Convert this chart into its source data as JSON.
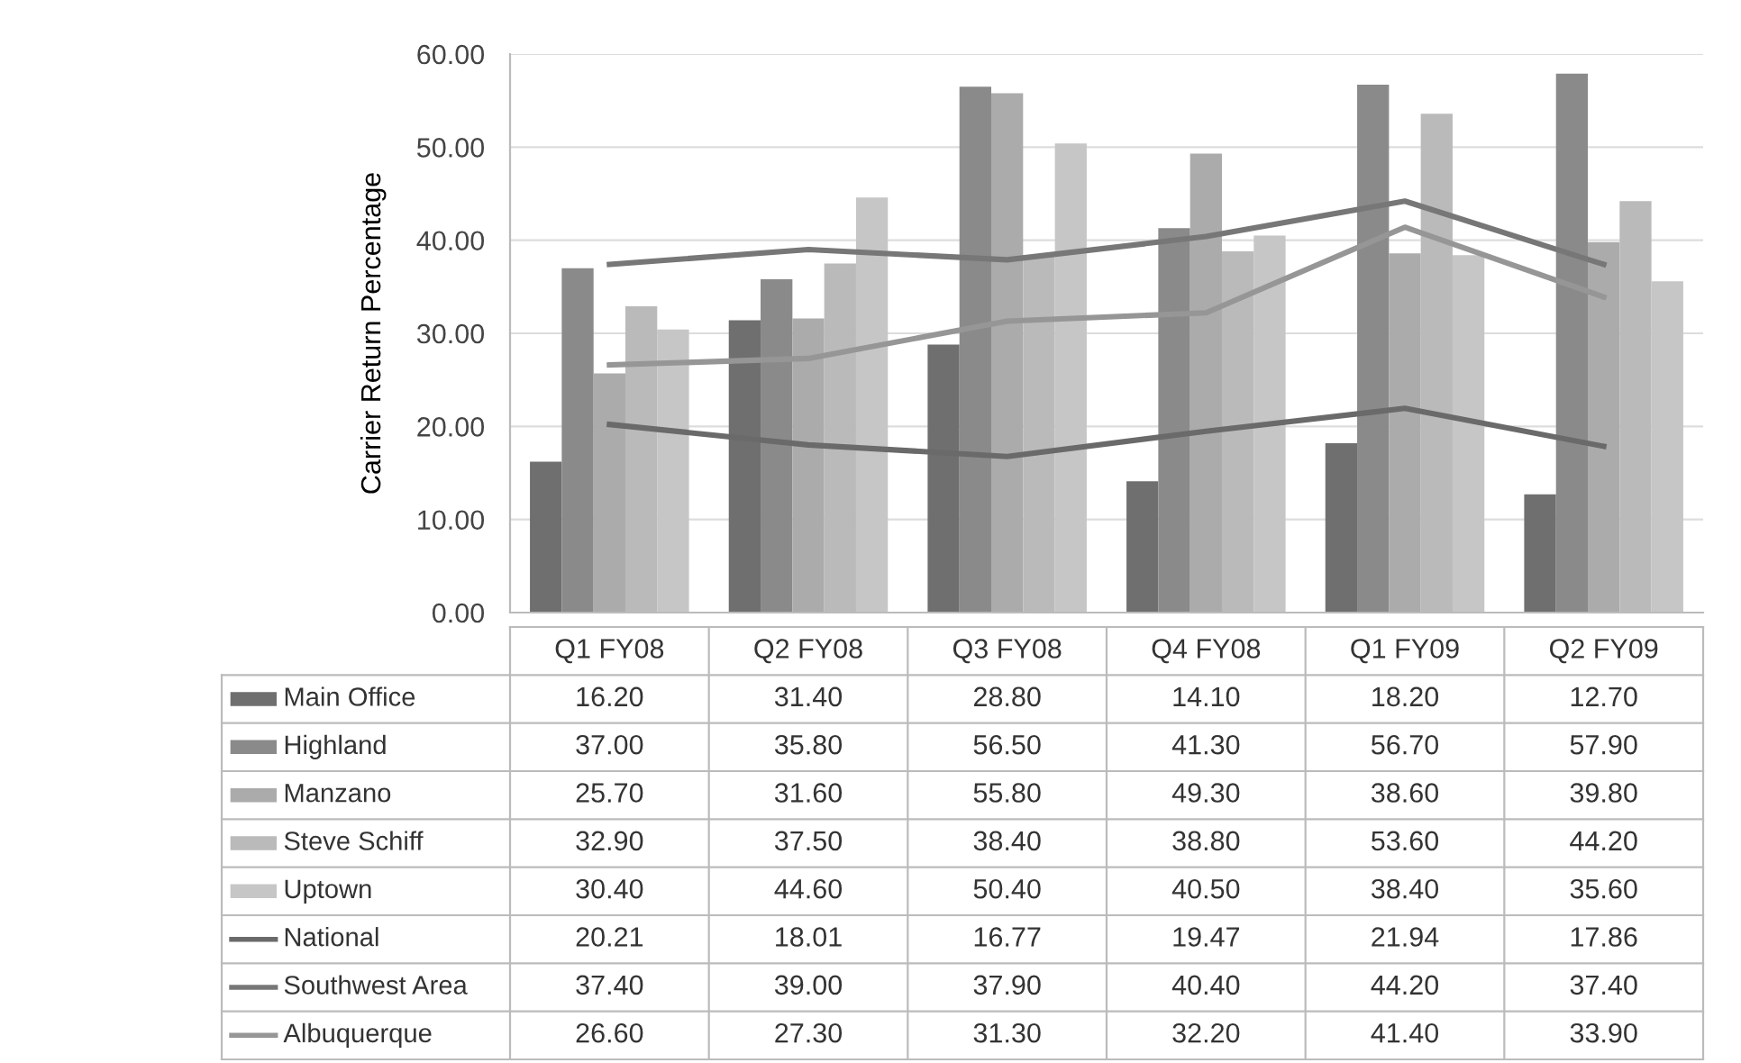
{
  "chart_data": {
    "type": "bar",
    "ylabel": "Carrier Return Percentage",
    "categories": [
      "Q1 FY08",
      "Q2 FY08",
      "Q3 FY08",
      "Q4 FY08",
      "Q1 FY09",
      "Q2 FY09"
    ],
    "series": [
      {
        "name": "Main Office",
        "color": "#6f6f6f",
        "values": [
          16.2,
          31.4,
          28.8,
          14.1,
          18.2,
          12.7
        ],
        "value_labels": [
          "16.20",
          "31.40",
          "28.80",
          "14.10",
          "18.20",
          "12.70"
        ]
      },
      {
        "name": "Highland",
        "color": "#8a8a8a",
        "values": [
          37.0,
          35.8,
          56.5,
          41.3,
          56.7,
          57.9
        ],
        "value_labels": [
          "37.00",
          "35.80",
          "56.50",
          "41.30",
          "56.70",
          "57.90"
        ]
      },
      {
        "name": "Manzano",
        "color": "#ababab",
        "values": [
          25.7,
          31.6,
          55.8,
          49.3,
          38.6,
          39.8
        ],
        "value_labels": [
          "25.70",
          "31.60",
          "55.80",
          "49.30",
          "38.60",
          "39.80"
        ]
      },
      {
        "name": "Steve Schiff",
        "color": "#bababa",
        "values": [
          32.9,
          37.5,
          38.4,
          38.8,
          53.6,
          44.2
        ],
        "value_labels": [
          "32.90",
          "37.50",
          "38.40",
          "38.80",
          "53.60",
          "44.20"
        ]
      },
      {
        "name": "Uptown",
        "color": "#c6c6c6",
        "values": [
          30.4,
          44.6,
          50.4,
          40.5,
          38.4,
          35.6
        ],
        "value_labels": [
          "30.40",
          "44.60",
          "50.40",
          "40.50",
          "38.40",
          "35.60"
        ]
      },
      {
        "name": "National",
        "type": "line",
        "color": "#6a6a6a",
        "values": [
          20.21,
          18.01,
          16.77,
          19.47,
          21.94,
          17.86
        ],
        "value_labels": [
          "20.21",
          "18.01",
          "16.77",
          "19.47",
          "21.94",
          "17.86"
        ]
      },
      {
        "name": "Southwest Area",
        "type": "line",
        "color": "#777777",
        "values": [
          37.4,
          39.0,
          37.9,
          40.4,
          44.2,
          37.4
        ],
        "value_labels": [
          "37.40",
          "39.00",
          "37.90",
          "40.40",
          "44.20",
          "37.40"
        ]
      },
      {
        "name": "Albuquerque",
        "type": "line",
        "color": "#969696",
        "values": [
          26.6,
          27.3,
          31.3,
          32.2,
          41.4,
          33.9
        ],
        "value_labels": [
          "26.60",
          "27.30",
          "31.30",
          "32.20",
          "41.40",
          "33.90"
        ]
      }
    ],
    "ylim": [
      0,
      60
    ],
    "yticks": [
      {
        "value": 0,
        "label": "0.00"
      },
      {
        "value": 10,
        "label": "10.00"
      },
      {
        "value": 20,
        "label": "20.00"
      },
      {
        "value": 30,
        "label": "30.00"
      },
      {
        "value": 40,
        "label": "40.00"
      },
      {
        "value": 50,
        "label": "50.00"
      },
      {
        "value": 60,
        "label": "60.00"
      }
    ],
    "grid": "y",
    "legend": "bottom left",
    "marker": "none",
    "line_style": "solid"
  }
}
